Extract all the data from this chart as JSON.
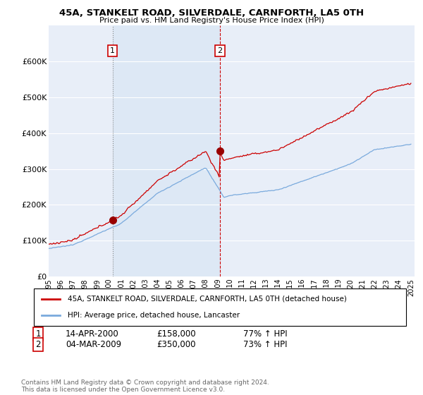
{
  "title": "45A, STANKELT ROAD, SILVERDALE, CARNFORTH, LA5 0TH",
  "subtitle": "Price paid vs. HM Land Registry's House Price Index (HPI)",
  "ylim": [
    0,
    700000
  ],
  "yticks": [
    0,
    100000,
    200000,
    300000,
    400000,
    500000,
    600000
  ],
  "ytick_labels": [
    "£0",
    "£100K",
    "£200K",
    "£300K",
    "£400K",
    "£500K",
    "£600K"
  ],
  "red_line_color": "#cc0000",
  "blue_line_color": "#7aaadd",
  "background_color": "#e8eef8",
  "grid_color": "#ffffff",
  "shade_color": "#dde8f5",
  "legend_label_red": "45A, STANKELT ROAD, SILVERDALE, CARNFORTH, LA5 0TH (detached house)",
  "legend_label_blue": "HPI: Average price, detached house, Lancaster",
  "transaction1_date": "14-APR-2000",
  "transaction1_price": "£158,000",
  "transaction1_hpi": "77% ↑ HPI",
  "transaction1_year": 2000.29,
  "transaction1_value": 158000,
  "transaction2_date": "04-MAR-2009",
  "transaction2_price": "£350,000",
  "transaction2_hpi": "73% ↑ HPI",
  "transaction2_year": 2009.17,
  "transaction2_value": 350000,
  "footnote": "Contains HM Land Registry data © Crown copyright and database right 2024.\nThis data is licensed under the Open Government Licence v3.0."
}
